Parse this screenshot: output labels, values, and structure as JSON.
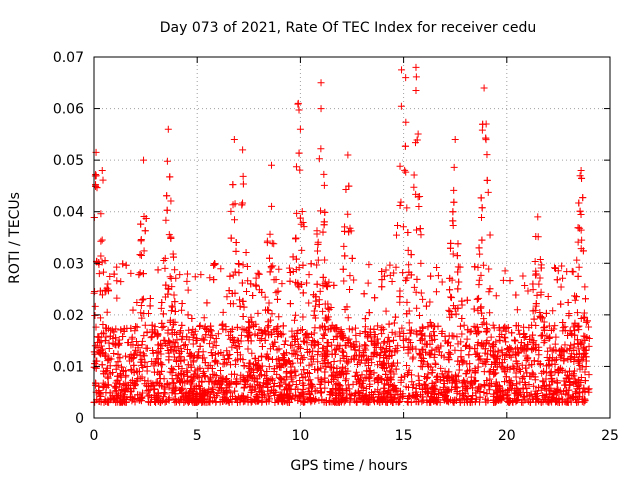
{
  "chart_data": {
    "type": "scatter",
    "title": "Day 073 of 2021, Rate Of TEC Index for receiver cedu",
    "xlabel": "GPS time / hours",
    "ylabel": "ROTI / TECUs",
    "xlim": [
      0,
      25
    ],
    "ylim": [
      0,
      0.07
    ],
    "xticks": [
      0,
      5,
      10,
      15,
      20,
      25
    ],
    "yticks": [
      0,
      0.01,
      0.02,
      0.03,
      0.04,
      0.05,
      0.06,
      0.07
    ],
    "xtick_labels": [
      "0",
      "5",
      "10",
      "15",
      "20",
      "25"
    ],
    "ytick_labels": [
      "0",
      "0.01",
      "0.02",
      "0.03",
      "0.04",
      "0.05",
      "0.06",
      "0.07"
    ],
    "grid": true,
    "marker": "+",
    "marker_color": "#ff0000",
    "series": [
      {
        "name": "ROTI",
        "x_range": [
          0,
          24
        ],
        "baseline_band": [
          0.003,
          0.018
        ],
        "notable_peaks": [
          {
            "x": 0.1,
            "y": 0.0515
          },
          {
            "x": 0.4,
            "y": 0.048
          },
          {
            "x": 2.4,
            "y": 0.05
          },
          {
            "x": 3.6,
            "y": 0.056
          },
          {
            "x": 6.8,
            "y": 0.054
          },
          {
            "x": 7.2,
            "y": 0.052
          },
          {
            "x": 8.6,
            "y": 0.049
          },
          {
            "x": 9.9,
            "y": 0.061
          },
          {
            "x": 10.0,
            "y": 0.056
          },
          {
            "x": 11.0,
            "y": 0.065
          },
          {
            "x": 11.0,
            "y": 0.06
          },
          {
            "x": 12.3,
            "y": 0.051
          },
          {
            "x": 14.9,
            "y": 0.0675
          },
          {
            "x": 15.1,
            "y": 0.066
          },
          {
            "x": 15.6,
            "y": 0.068
          },
          {
            "x": 15.6,
            "y": 0.0635
          },
          {
            "x": 17.5,
            "y": 0.054
          },
          {
            "x": 18.9,
            "y": 0.064
          },
          {
            "x": 19.0,
            "y": 0.057
          },
          {
            "x": 21.5,
            "y": 0.039
          },
          {
            "x": 23.6,
            "y": 0.048
          }
        ]
      }
    ]
  }
}
